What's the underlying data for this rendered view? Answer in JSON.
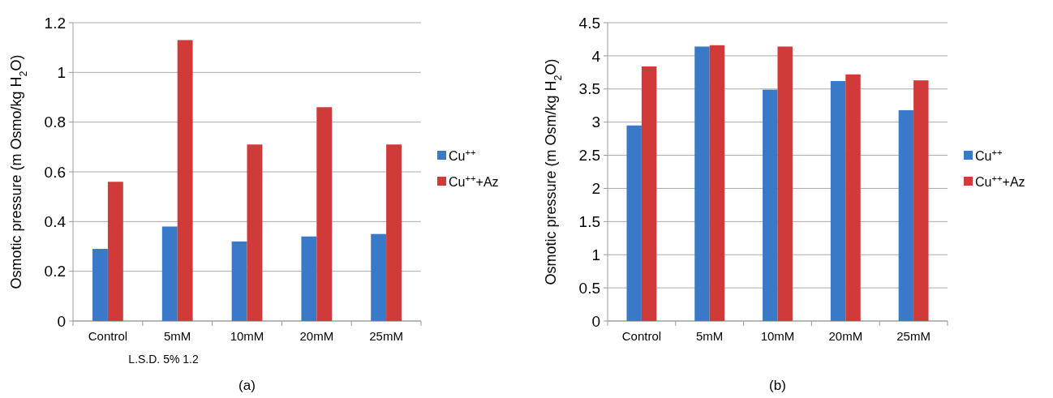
{
  "chart_data": [
    {
      "type": "bar",
      "ylabel": "Osmotic pressure (m Osmo/kg H$_{2}$O)",
      "categories": [
        "Control",
        "5mM",
        "10mM",
        "20mM",
        "25mM"
      ],
      "series": [
        {
          "name": "Cu$^{++}$",
          "color": "#3a78c8",
          "values": [
            0.29,
            0.38,
            0.32,
            0.34,
            0.35
          ]
        },
        {
          "name": "Cu$^{++}$+Az",
          "color": "#d03a38",
          "values": [
            0.56,
            1.13,
            0.71,
            0.86,
            0.71
          ]
        }
      ],
      "ylim": [
        0,
        1.2
      ],
      "yticks": [
        0,
        0.2,
        0.4,
        0.6,
        0.8,
        1,
        1.2
      ],
      "grid": "y",
      "legend": "right",
      "annotations": [
        "L.S.D. 5% 1.2",
        "(a)"
      ]
    },
    {
      "type": "bar",
      "ylabel": "Osmotic pressure (m Osm/kg H$_{2}$O)",
      "categories": [
        "Control",
        "5mM",
        "10mM",
        "20mM",
        "25mM"
      ],
      "series": [
        {
          "name": "Cu$^{++}$",
          "color": "#3a78c8",
          "values": [
            2.95,
            4.14,
            3.49,
            3.62,
            3.18
          ]
        },
        {
          "name": "Cu$^{++}$+Az",
          "color": "#d03a38",
          "values": [
            3.84,
            4.16,
            4.14,
            3.72,
            3.63
          ]
        }
      ],
      "ylim": [
        0,
        4.5
      ],
      "yticks": [
        0,
        0.5,
        1,
        1.5,
        2,
        2.5,
        3,
        3.5,
        4,
        4.5
      ],
      "grid": "y",
      "legend": "right",
      "annotations": [
        "(b)"
      ]
    }
  ]
}
